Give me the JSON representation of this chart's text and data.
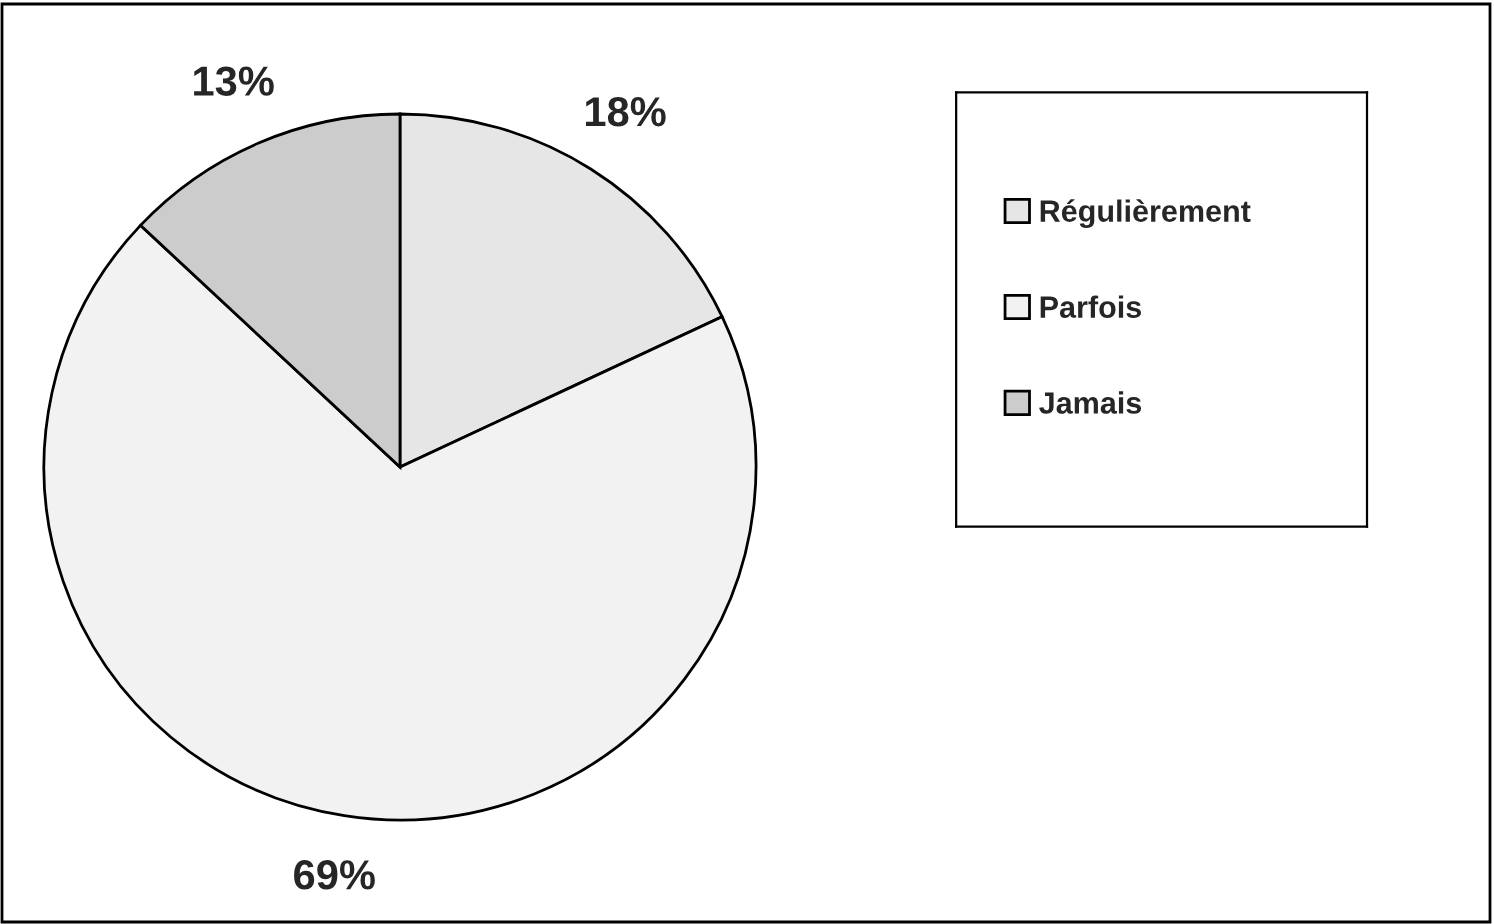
{
  "chart_data": {
    "type": "pie",
    "categories": [
      "Régulièrement",
      "Parfois",
      "Jamais"
    ],
    "values": [
      18,
      69,
      13
    ],
    "colors": [
      "#e6e6e6",
      "#f2f2f2",
      "#cccccc"
    ],
    "value_labels": [
      "18%",
      "69%",
      "13%"
    ],
    "legend": "right"
  }
}
